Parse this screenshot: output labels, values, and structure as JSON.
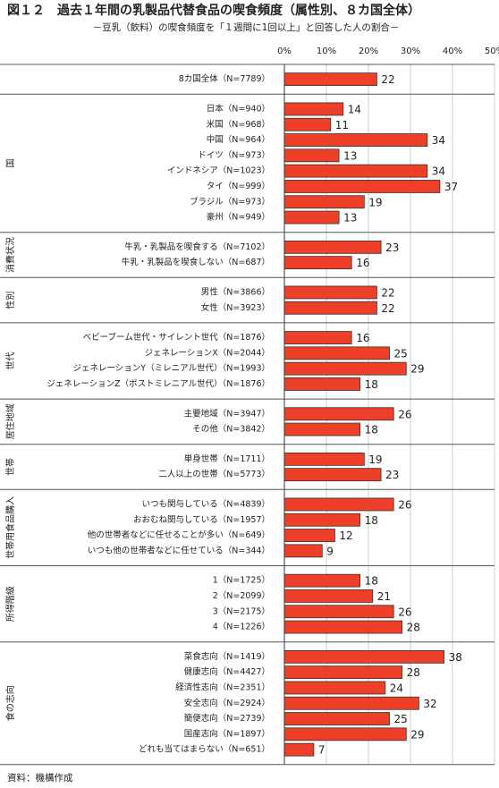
{
  "chart_data": {
    "type": "bar",
    "orientation": "horizontal",
    "title": "図１２　過去１年間の乳製品代替食品の喫食頻度（属性別、８カ国全体）",
    "subtitle": "－豆乳（飲料）の喫食頻度を「１週間に1回以上」と回答した人の割合－",
    "source": "資料：機構作成",
    "color": "#ee4028",
    "grid": true,
    "xlim": [
      0,
      50
    ],
    "xticks": [
      {
        "value": 0,
        "label": "0%"
      },
      {
        "value": 10,
        "label": "10%"
      },
      {
        "value": 20,
        "label": "20%"
      },
      {
        "value": 30,
        "label": "30%"
      },
      {
        "value": 40,
        "label": "40%"
      },
      {
        "value": 50,
        "label": "50%"
      }
    ],
    "groups": [
      {
        "categories": [
          "8カ国全体（N=7789）"
        ],
        "values": [
          22
        ]
      },
      {
        "name": "国",
        "categories": [
          "日本（N=940）",
          "米国（N=968）",
          "中国（N=964）",
          "ドイツ（N=973）",
          "インドネシア（N=1023）",
          "タイ（N=999）",
          "ブラジル（N=973）",
          "豪州（N=949）"
        ],
        "values": [
          14,
          11,
          34,
          13,
          34,
          37,
          19,
          13
        ]
      },
      {
        "name": "消費状況",
        "categories": [
          "牛乳・乳製品を喫食する（N=7102）",
          "牛乳・乳製品を喫食しない（N=687）"
        ],
        "values": [
          23,
          16
        ]
      },
      {
        "name": "性別",
        "categories": [
          "男性（N=3866）",
          "女性（N=3923）"
        ],
        "values": [
          22,
          22
        ]
      },
      {
        "name": "世代",
        "categories": [
          "ベビーブーム世代・サイレント世代（N=1876）",
          "ジェネレーションX（N=2044）",
          "ジェネレーションY（ミレニアル世代）（N=1993）",
          "ジェネレーションZ（ポストミレニアル世代）（N=1876）"
        ],
        "values": [
          16,
          25,
          29,
          18
        ]
      },
      {
        "name": "居住地域",
        "categories": [
          "主要地域（N=3947）",
          "その他（N=3842）"
        ],
        "values": [
          26,
          18
        ]
      },
      {
        "name": "世帯",
        "categories": [
          "単身世帯（N=1711）",
          "二人以上の世帯（N=5773）"
        ],
        "values": [
          19,
          23
        ]
      },
      {
        "name": "世帯用食品購入",
        "categories": [
          "いつも関与している（N=4839）",
          "おおむね関与している（N=1957）",
          "他の世帯者などに任せることが多い（N=649）",
          "いつも他の世帯者などに任せている（N=344）"
        ],
        "values": [
          26,
          18,
          12,
          9
        ]
      },
      {
        "name": "所得階級",
        "categories": [
          "1（N=1725）",
          "2（N=2099）",
          "3（N=2175）",
          "4（N=1226）"
        ],
        "values": [
          18,
          21,
          26,
          28
        ]
      },
      {
        "name": "食の志向",
        "categories": [
          "菜食志向（N=1419）",
          "健康志向（N=4427）",
          "経済性志向（N=2351）",
          "安全志向（N=2924）",
          "簡便志向（N=2739）",
          "国産志向（N=1897）",
          "どれも当てはまらない（N=651）"
        ],
        "values": [
          38,
          28,
          24,
          32,
          25,
          29,
          7
        ]
      }
    ]
  }
}
